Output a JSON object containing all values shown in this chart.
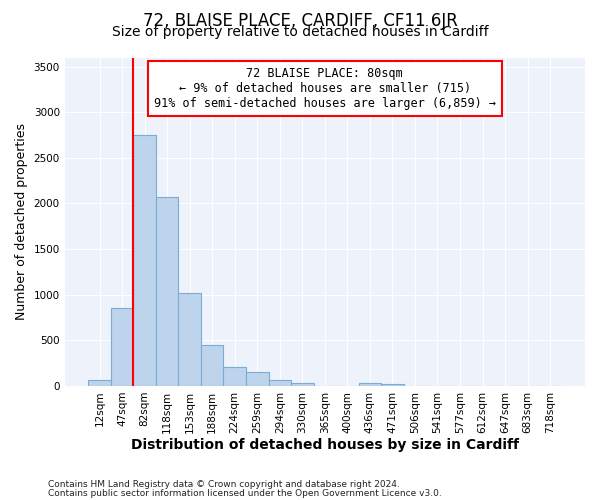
{
  "title_line1": "72, BLAISE PLACE, CARDIFF, CF11 6JR",
  "title_line2": "Size of property relative to detached houses in Cardiff",
  "xlabel": "Distribution of detached houses by size in Cardiff",
  "ylabel": "Number of detached properties",
  "categories": [
    "12sqm",
    "47sqm",
    "82sqm",
    "118sqm",
    "153sqm",
    "188sqm",
    "224sqm",
    "259sqm",
    "294sqm",
    "330sqm",
    "365sqm",
    "400sqm",
    "436sqm",
    "471sqm",
    "506sqm",
    "541sqm",
    "577sqm",
    "612sqm",
    "647sqm",
    "683sqm",
    "718sqm"
  ],
  "values": [
    65,
    850,
    2750,
    2075,
    1020,
    450,
    210,
    150,
    60,
    30,
    0,
    0,
    30,
    20,
    0,
    0,
    0,
    0,
    0,
    0,
    0
  ],
  "bar_color": "#bdd4ec",
  "bar_edge_color": "#7aadd4",
  "red_line_index": 2,
  "annotation_text": "72 BLAISE PLACE: 80sqm\n← 9% of detached houses are smaller (715)\n91% of semi-detached houses are larger (6,859) →",
  "annotation_box_color": "white",
  "annotation_box_edge_color": "red",
  "footer_line1": "Contains HM Land Registry data © Crown copyright and database right 2024.",
  "footer_line2": "Contains public sector information licensed under the Open Government Licence v3.0.",
  "ylim": [
    0,
    3600
  ],
  "yticks": [
    0,
    500,
    1000,
    1500,
    2000,
    2500,
    3000,
    3500
  ],
  "background_color": "#edf2fb",
  "grid_color": "white",
  "title1_fontsize": 12,
  "title2_fontsize": 10,
  "ylabel_fontsize": 9,
  "xlabel_fontsize": 10,
  "annot_fontsize": 8.5,
  "tick_fontsize": 7.5,
  "footer_fontsize": 6.5
}
